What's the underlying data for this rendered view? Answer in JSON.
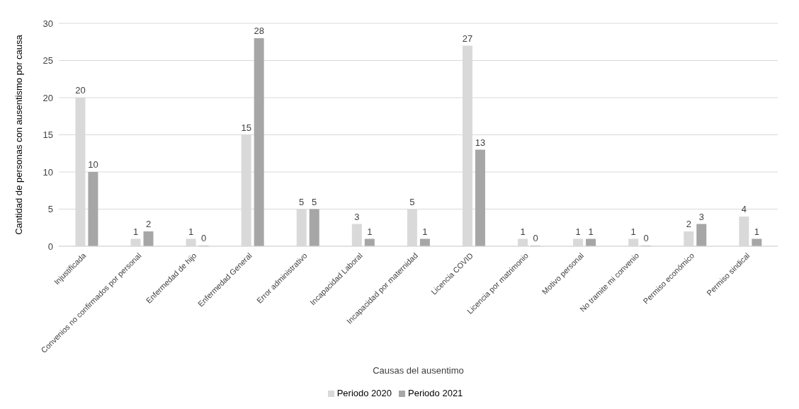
{
  "chart_data": {
    "type": "bar",
    "xlabel": "Causas del ausentimo",
    "ylabel": "Cantidad de personas con ausentismo por causa",
    "categories": [
      "Injustificada",
      "Convenios no confirmados por personal",
      "Enfermedad de hijo",
      "Enfermedad General",
      "Error administrativo",
      "Incapacidad Laboral",
      "Incapacidad por maternidad",
      "Licencia COVID",
      "Licencia por matrimonio",
      "Motivo personal",
      "No tramite mi convenio",
      "Permiso económico",
      "Permiso sindical"
    ],
    "series": [
      {
        "name": "Periodo 2020",
        "color": "#d9d9d9",
        "values": [
          20,
          1,
          1,
          15,
          5,
          3,
          5,
          27,
          1,
          1,
          1,
          2,
          4
        ]
      },
      {
        "name": "Periodo 2021",
        "color": "#a6a6a6",
        "values": [
          10,
          2,
          0,
          28,
          5,
          1,
          1,
          13,
          0,
          1,
          0,
          3,
          1
        ]
      }
    ],
    "ylim": [
      0,
      30
    ],
    "yticks": [
      0,
      5,
      10,
      15,
      20,
      25,
      30
    ],
    "grid": "y",
    "legend": "bottom",
    "data_labels": true
  }
}
